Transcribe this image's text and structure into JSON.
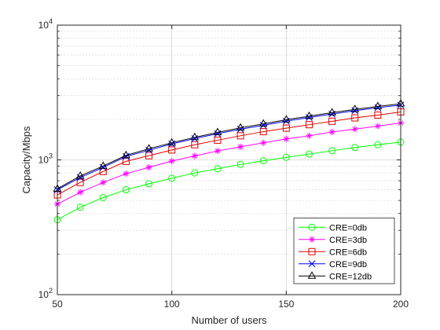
{
  "chart_data": {
    "type": "line",
    "title": "",
    "xlabel": "Number of users",
    "ylabel": "Capacity/Mbps",
    "x_scale": "linear",
    "y_scale": "log",
    "xlim": [
      50,
      200
    ],
    "ylim": [
      100,
      10000
    ],
    "x_ticks": [
      50,
      100,
      150,
      200
    ],
    "x_tick_labels": [
      "50",
      "100",
      "150",
      "200"
    ],
    "y_ticks": [
      {
        "value": 100,
        "base": "10",
        "exp": "2"
      },
      {
        "value": 1000,
        "base": "10",
        "exp": "3"
      },
      {
        "value": 10000,
        "base": "10",
        "exp": "4"
      }
    ],
    "grid": true,
    "minor_grid": true,
    "legend_position": "bottom-right",
    "x": [
      50,
      60,
      70,
      80,
      90,
      100,
      110,
      120,
      130,
      140,
      150,
      160,
      170,
      180,
      190,
      200
    ],
    "series": [
      {
        "name": "CRE=0db",
        "color": "#00ff00",
        "marker": "circle",
        "values": [
          360,
          445,
          525,
          600,
          665,
          730,
          800,
          860,
          925,
          985,
          1045,
          1105,
          1170,
          1235,
          1295,
          1355
        ]
      },
      {
        "name": "CRE=3db",
        "color": "#ff00ff",
        "marker": "asterisk",
        "values": [
          470,
          575,
          680,
          790,
          880,
          980,
          1070,
          1165,
          1250,
          1340,
          1430,
          1510,
          1610,
          1690,
          1780,
          1880
        ]
      },
      {
        "name": "CRE=6db",
        "color": "#e00000",
        "marker": "square",
        "values": [
          550,
          680,
          820,
          975,
          1075,
          1185,
          1295,
          1400,
          1510,
          1620,
          1720,
          1825,
          1935,
          2050,
          2150,
          2270
        ]
      },
      {
        "name": "CRE=9db",
        "color": "#0000ff",
        "marker": "x",
        "values": [
          600,
          740,
          880,
          1060,
          1180,
          1315,
          1440,
          1565,
          1690,
          1805,
          1940,
          2065,
          2190,
          2320,
          2440,
          2550
        ]
      },
      {
        "name": "CRE=12db",
        "color": "#000000",
        "marker": "triangle",
        "values": [
          610,
          760,
          900,
          1080,
          1210,
          1340,
          1470,
          1600,
          1730,
          1850,
          1985,
          2110,
          2240,
          2370,
          2490,
          2610
        ]
      }
    ]
  }
}
